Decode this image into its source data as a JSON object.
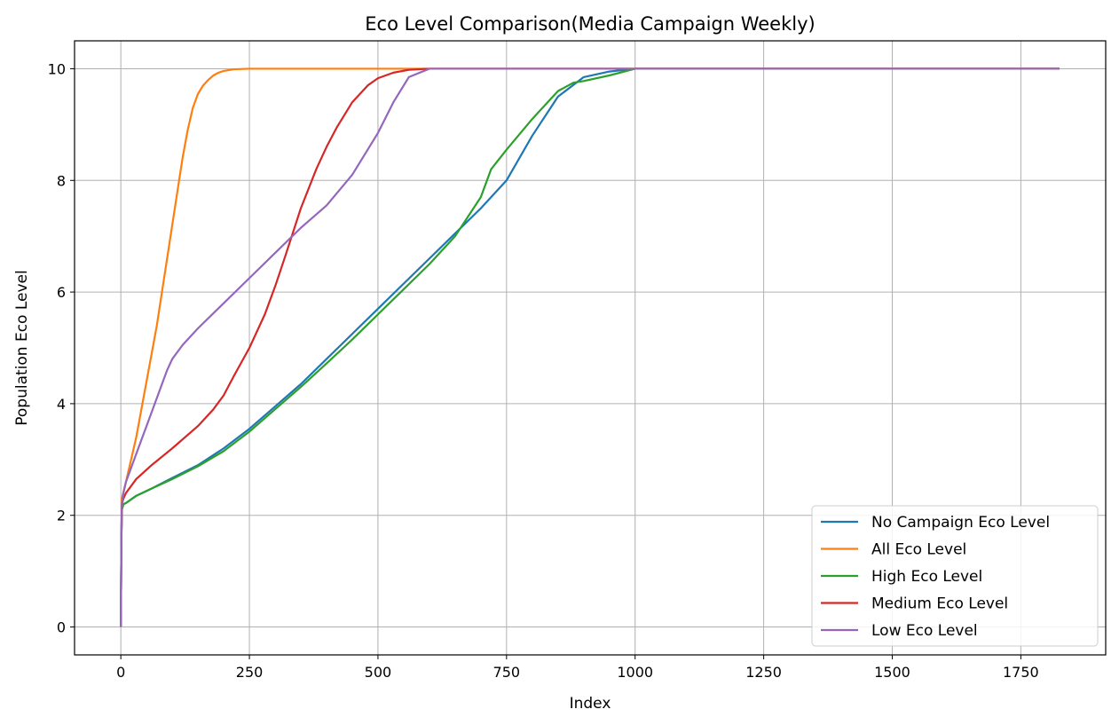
{
  "chart_data": {
    "type": "line",
    "title": "Eco Level Comparison(Media Campaign Weekly)",
    "xlabel": "Index",
    "ylabel": "Population Eco Level",
    "xlim": [
      -90,
      1915
    ],
    "ylim": [
      -0.5,
      10.5
    ],
    "xticks": [
      0,
      250,
      500,
      750,
      1000,
      1250,
      1500,
      1750
    ],
    "yticks": [
      0,
      2,
      4,
      6,
      8,
      10
    ],
    "grid": true,
    "legend_position": "lower-right",
    "series": [
      {
        "name": "No Campaign Eco Level",
        "color": "#1f77b4",
        "x": [
          0,
          1,
          2,
          5,
          10,
          30,
          60,
          100,
          150,
          200,
          250,
          300,
          350,
          400,
          450,
          500,
          550,
          600,
          650,
          700,
          750,
          800,
          850,
          900,
          950,
          1000,
          1050,
          1825
        ],
        "y": [
          0,
          1.5,
          2.1,
          2.2,
          2.22,
          2.35,
          2.48,
          2.67,
          2.9,
          3.2,
          3.55,
          3.95,
          4.35,
          4.8,
          5.25,
          5.7,
          6.15,
          6.6,
          7.05,
          7.5,
          8.0,
          8.8,
          9.5,
          9.85,
          9.95,
          10,
          10,
          10
        ]
      },
      {
        "name": "All Eco Level",
        "color": "#ff7f0e",
        "x": [
          0,
          1,
          2,
          10,
          20,
          30,
          40,
          50,
          60,
          70,
          80,
          90,
          100,
          110,
          120,
          130,
          140,
          150,
          160,
          170,
          180,
          190,
          200,
          220,
          250,
          300,
          1825
        ],
        "y": [
          0,
          1.5,
          2.3,
          2.6,
          3.0,
          3.4,
          3.9,
          4.4,
          4.9,
          5.4,
          6.0,
          6.6,
          7.2,
          7.8,
          8.4,
          8.9,
          9.3,
          9.55,
          9.7,
          9.8,
          9.88,
          9.93,
          9.96,
          9.99,
          10,
          10,
          10
        ]
      },
      {
        "name": "High Eco Level",
        "color": "#2ca02c",
        "x": [
          0,
          1,
          2,
          5,
          10,
          30,
          60,
          100,
          150,
          200,
          250,
          300,
          350,
          400,
          450,
          500,
          550,
          600,
          650,
          700,
          720,
          750,
          800,
          850,
          880,
          900,
          950,
          1000,
          1050,
          1825
        ],
        "y": [
          0,
          1.5,
          2.1,
          2.2,
          2.22,
          2.35,
          2.48,
          2.65,
          2.88,
          3.15,
          3.5,
          3.9,
          4.3,
          4.72,
          5.15,
          5.6,
          6.05,
          6.5,
          7.0,
          7.7,
          8.2,
          8.55,
          9.1,
          9.6,
          9.75,
          9.78,
          9.88,
          10,
          10,
          10
        ]
      },
      {
        "name": "Medium Eco Level",
        "color": "#d62728",
        "x": [
          0,
          1,
          2,
          5,
          10,
          30,
          60,
          100,
          150,
          180,
          200,
          220,
          250,
          280,
          300,
          320,
          350,
          380,
          400,
          420,
          450,
          480,
          500,
          530,
          560,
          600,
          650,
          1825
        ],
        "y": [
          0,
          1.5,
          2.2,
          2.3,
          2.4,
          2.65,
          2.9,
          3.2,
          3.6,
          3.9,
          4.15,
          4.5,
          5.0,
          5.6,
          6.1,
          6.65,
          7.5,
          8.2,
          8.6,
          8.95,
          9.4,
          9.7,
          9.83,
          9.93,
          9.98,
          10,
          10,
          10
        ]
      },
      {
        "name": "Low Eco Level",
        "color": "#9467bd",
        "x": [
          0,
          1,
          2,
          5,
          10,
          20,
          30,
          40,
          50,
          60,
          70,
          80,
          90,
          100,
          120,
          150,
          200,
          250,
          300,
          350,
          400,
          450,
          500,
          530,
          560,
          600,
          650,
          700,
          1825
        ],
        "y": [
          0,
          1.5,
          2.2,
          2.4,
          2.6,
          2.85,
          3.1,
          3.35,
          3.6,
          3.85,
          4.1,
          4.35,
          4.6,
          4.8,
          5.05,
          5.35,
          5.8,
          6.25,
          6.7,
          7.15,
          7.55,
          8.1,
          8.85,
          9.4,
          9.85,
          10,
          10,
          10,
          10
        ]
      }
    ]
  }
}
